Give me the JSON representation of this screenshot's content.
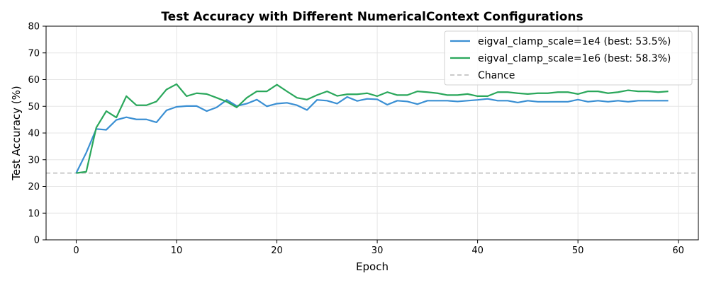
{
  "chart_data": {
    "type": "line",
    "title": "Test Accuracy with Different NumericalContext Configurations",
    "xlabel": "Epoch",
    "ylabel": "Test Accuracy (%)",
    "xlim": [
      -3,
      62
    ],
    "ylim": [
      0,
      80
    ],
    "xticks": [
      0,
      10,
      20,
      30,
      40,
      50,
      60
    ],
    "yticks": [
      0,
      10,
      20,
      30,
      40,
      50,
      60,
      70,
      80
    ],
    "grid": true,
    "legend_position": "top-right",
    "x": [
      0,
      1,
      2,
      3,
      4,
      5,
      6,
      7,
      8,
      9,
      10,
      11,
      12,
      13,
      14,
      15,
      16,
      17,
      18,
      19,
      20,
      21,
      22,
      23,
      24,
      25,
      26,
      27,
      28,
      29,
      30,
      31,
      32,
      33,
      34,
      35,
      36,
      37,
      38,
      39,
      40,
      41,
      42,
      43,
      44,
      45,
      46,
      47,
      48,
      49,
      50,
      51,
      52,
      53,
      54,
      55,
      56,
      57,
      58,
      59
    ],
    "series": [
      {
        "name": "eigval_clamp_scale=1e4 (best: 53.5%)",
        "color": "#3a8fd3",
        "values": [
          25.0,
          32.6,
          41.5,
          41.2,
          44.9,
          45.9,
          45.1,
          45.1,
          44.0,
          48.5,
          49.8,
          50.1,
          50.1,
          48.2,
          49.6,
          52.4,
          50.1,
          51.0,
          52.5,
          50.0,
          51.0,
          51.3,
          50.4,
          48.6,
          52.4,
          52.1,
          51.0,
          53.5,
          52.0,
          52.8,
          52.6,
          50.6,
          52.1,
          51.8,
          50.8,
          52.1,
          52.1,
          52.1,
          51.8,
          52.1,
          52.4,
          52.8,
          52.1,
          52.1,
          51.4,
          52.1,
          51.7,
          51.7,
          51.7,
          51.7,
          52.5,
          51.7,
          52.1,
          51.7,
          52.1,
          51.7,
          52.1,
          52.1,
          52.1,
          52.1
        ]
      },
      {
        "name": "eigval_clamp_scale=1e6 (best: 58.3%)",
        "color": "#2aa75b",
        "values": [
          25.0,
          25.5,
          42.0,
          48.2,
          45.8,
          53.8,
          50.4,
          50.4,
          51.8,
          56.3,
          58.3,
          53.8,
          54.9,
          54.6,
          53.2,
          51.7,
          49.6,
          53.2,
          55.6,
          55.6,
          58.1,
          55.6,
          53.2,
          52.5,
          54.2,
          55.6,
          53.9,
          54.5,
          54.5,
          54.9,
          53.8,
          55.3,
          54.2,
          54.2,
          55.6,
          55.3,
          54.9,
          54.2,
          54.2,
          54.6,
          53.8,
          53.8,
          55.3,
          55.3,
          54.9,
          54.6,
          54.9,
          54.9,
          55.3,
          55.3,
          54.6,
          55.6,
          55.6,
          54.9,
          55.3,
          56.0,
          55.6,
          55.6,
          55.3,
          55.6
        ]
      }
    ],
    "reference_lines": [
      {
        "name": "Chance",
        "y": 25,
        "color": "#b8b8b8",
        "style": "dashed"
      }
    ]
  }
}
